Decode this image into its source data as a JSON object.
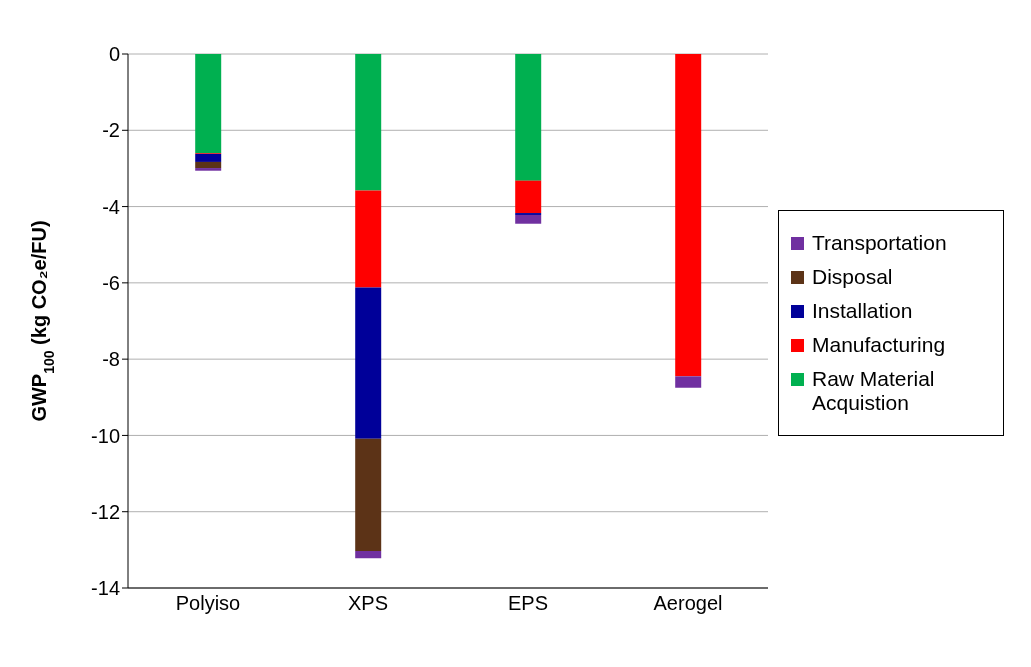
{
  "chart_data": {
    "type": "bar",
    "ylabel": "GWP$_{100}$ (kg CO₂e/FU)",
    "categories": [
      "Polyiso",
      "XPS",
      "EPS",
      "Aerogel"
    ],
    "stacked": true,
    "series": [
      {
        "name": "Raw Material Acquistion",
        "color": "#00b050",
        "values": [
          -2.6,
          -3.58,
          -3.32,
          0
        ]
      },
      {
        "name": "Manufacturing",
        "color": "#ff0000",
        "values": [
          -0.02,
          -2.54,
          -0.85,
          -8.45
        ]
      },
      {
        "name": "Installation",
        "color": "#000099",
        "values": [
          -0.21,
          -3.97,
          -0.05,
          0
        ]
      },
      {
        "name": "Disposal",
        "color": "#5c3317",
        "values": [
          -0.16,
          -2.94,
          0,
          0
        ]
      },
      {
        "name": "Transportation",
        "color": "#7030a0",
        "values": [
          -0.07,
          -0.19,
          -0.23,
          -0.3
        ]
      }
    ],
    "ylim": [
      -14,
      0
    ],
    "yticks": [
      -14,
      -12,
      -10,
      -8,
      -6,
      -4,
      -2,
      0
    ],
    "grid": "y",
    "legend": "right"
  }
}
